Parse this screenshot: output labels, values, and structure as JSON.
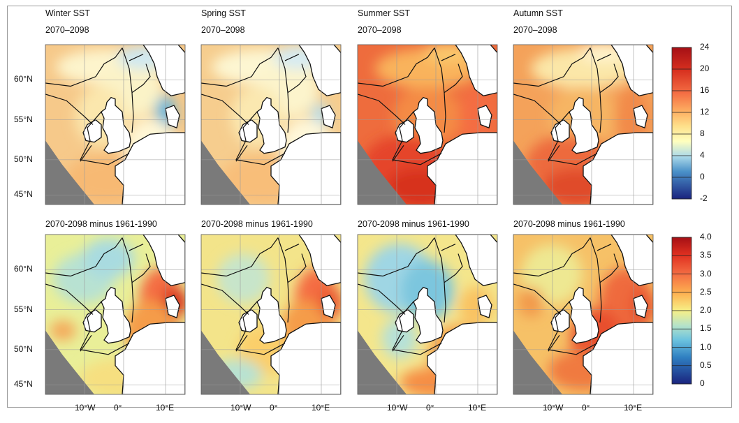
{
  "figure": {
    "rows": [
      {
        "panels": [
          {
            "title": "Winter SST",
            "subtitle": "2070–2098",
            "scheme": "winter_abs"
          },
          {
            "title": "Spring SST",
            "subtitle": "2070–2098",
            "scheme": "spring_abs"
          },
          {
            "title": "Summer SST",
            "subtitle": "2070–2098",
            "scheme": "summer_abs"
          },
          {
            "title": "Autumn SST",
            "subtitle": "2070–2098",
            "scheme": "autumn_abs"
          }
        ],
        "colorbar": {
          "ticks": [
            "24",
            "20",
            "16",
            "12",
            "8",
            "4",
            "0",
            "-2"
          ]
        }
      },
      {
        "panels": [
          {
            "title": "2070-2098 minus 1961-1990",
            "subtitle": "",
            "scheme": "winter_diff"
          },
          {
            "title": "2070-2098 minus 1961-1990",
            "subtitle": "",
            "scheme": "spring_diff"
          },
          {
            "title": "2070-2098 minus 1961-1990",
            "subtitle": "",
            "scheme": "summer_diff"
          },
          {
            "title": "2070-2098 minus 1961-1990",
            "subtitle": "",
            "scheme": "autumn_diff"
          }
        ],
        "colorbar": {
          "ticks": [
            "4.0",
            "3.5",
            "3.0",
            "2.5",
            "2.0",
            "1.5",
            "1.0",
            "0.5",
            "0"
          ]
        }
      }
    ],
    "lat_labels": [
      "60°N",
      "55°N",
      "50°N",
      "45°N"
    ],
    "lon_labels": [
      "10°W",
      "0°",
      "10°E"
    ],
    "colors": {
      "land": "#ffffff",
      "outside_domain": "#7a7a7a",
      "coast_line": "#111111",
      "grid_line": "#9a9a9a"
    }
  }
}
